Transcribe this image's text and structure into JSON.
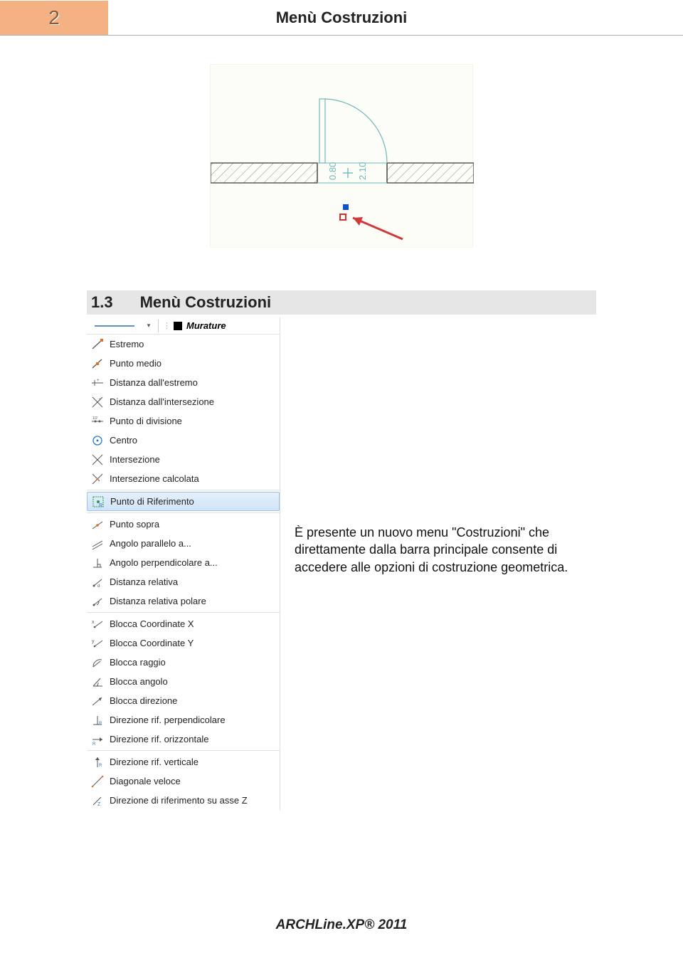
{
  "page_number": "2",
  "header_title": "Menù Costruzioni",
  "hero_diagram": {
    "background": "#fdfdf8",
    "wall_fill": "#ffffff",
    "wall_hatch": "#8a8a8a",
    "wall_outline": "#333333",
    "door_outline": "#6fb8bb",
    "dim_text_color": "#6fb8bb",
    "dim_left": "0.80",
    "dim_right": "2.10",
    "cursor_color": "#6fb8bb",
    "arrow_color": "#d03a3a",
    "marker_blue": "#1050d0",
    "marker_red": "#d03030"
  },
  "section": {
    "number": "1.3",
    "title": "Menù Costruzioni",
    "bg": "#e6e6e6"
  },
  "menu_top": {
    "label": "Murature"
  },
  "menu_items": [
    {
      "label": "Estremo",
      "icon": "line-end",
      "selected": false
    },
    {
      "label": "Punto medio",
      "icon": "line-mid",
      "selected": false
    },
    {
      "label": "Distanza dall'estremo",
      "icon": "dist-end",
      "selected": false
    },
    {
      "label": "Distanza dall'intersezione",
      "icon": "dist-int",
      "selected": false
    },
    {
      "label": "Punto di divisione",
      "icon": "division",
      "selected": false
    },
    {
      "label": "Centro",
      "icon": "center",
      "selected": false
    },
    {
      "label": "Intersezione",
      "icon": "intersect",
      "selected": false
    },
    {
      "label": "Intersezione calcolata",
      "icon": "intersect-calc",
      "selected": false
    },
    {
      "divider": true
    },
    {
      "label": "Punto di Riferimento",
      "icon": "ref-point",
      "selected": true
    },
    {
      "divider": true
    },
    {
      "label": "Punto sopra",
      "icon": "point-above",
      "selected": false
    },
    {
      "label": "Angolo parallelo a...",
      "icon": "angle-par",
      "selected": false
    },
    {
      "label": "Angolo perpendicolare a...",
      "icon": "angle-perp",
      "selected": false
    },
    {
      "label": "Distanza relativa",
      "icon": "rel-dist",
      "selected": false
    },
    {
      "label": "Distanza relativa polare",
      "icon": "rel-polar",
      "selected": false
    },
    {
      "divider": true
    },
    {
      "label": "Blocca Coordinate X",
      "icon": "lock-x",
      "selected": false
    },
    {
      "label": "Blocca Coordinate Y",
      "icon": "lock-y",
      "selected": false
    },
    {
      "label": "Blocca raggio",
      "icon": "lock-r",
      "selected": false
    },
    {
      "label": "Blocca angolo",
      "icon": "lock-a",
      "selected": false
    },
    {
      "label": "Blocca direzione",
      "icon": "lock-dir",
      "selected": false
    },
    {
      "label": "Direzione rif. perpendicolare",
      "icon": "dir-perp",
      "selected": false
    },
    {
      "label": "Direzione rif. orizzontale",
      "icon": "dir-horiz",
      "selected": false
    },
    {
      "divider": true
    },
    {
      "label": "Direzione rif. verticale",
      "icon": "dir-vert",
      "selected": false
    },
    {
      "label": "Diagonale veloce",
      "icon": "diag-fast",
      "selected": false
    },
    {
      "label": "Direzione di riferimento su asse Z",
      "icon": "dir-z",
      "selected": false
    }
  ],
  "body_text": "È presente un nuovo menu \"Costruzioni\" che direttamente dalla barra principale consente di accedere alle opzioni di costruzione geometrica.",
  "footer": "ARCHLine.XP® 2011"
}
